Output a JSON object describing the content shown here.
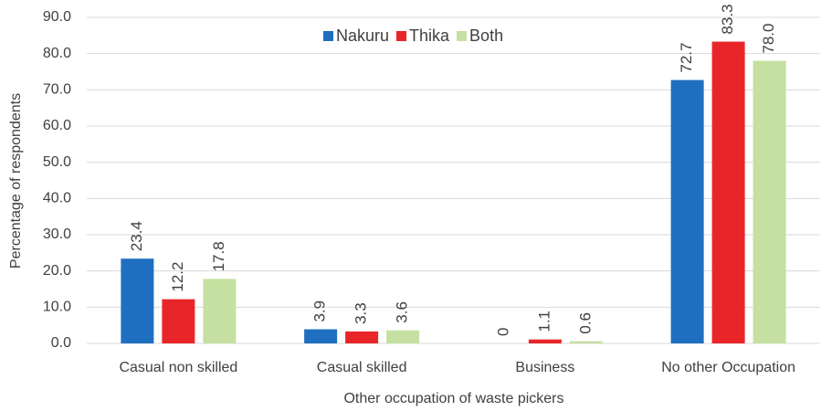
{
  "chart_data": {
    "type": "bar",
    "x_label": "Other occupation of waste pickers",
    "y_label": "Percentage of respondents",
    "categories": [
      "Casual non skilled",
      "Casual skilled",
      "Business",
      "No other Occupation"
    ],
    "series": [
      {
        "name": "Nakuru",
        "color": "#1f6fc0",
        "values": [
          23.4,
          3.9,
          0,
          72.7
        ]
      },
      {
        "name": "Thika",
        "color": "#e8262a",
        "values": [
          12.2,
          3.3,
          1.1,
          83.3
        ]
      },
      {
        "name": "Both",
        "color": "#c5e0a0",
        "values": [
          17.8,
          3.6,
          0.6,
          78.0
        ],
        "value_labels": [
          "17.8",
          "3.6",
          "0.6",
          "78.0"
        ]
      }
    ],
    "ylim": [
      0,
      90
    ],
    "yticks": [
      {
        "value": 0,
        "label": "0.0"
      },
      {
        "value": 10,
        "label": "10.0"
      },
      {
        "value": 20,
        "label": "20.0"
      },
      {
        "value": 30,
        "label": "30.0"
      },
      {
        "value": 40,
        "label": "40.0"
      },
      {
        "value": 50,
        "label": "50.0"
      },
      {
        "value": 60,
        "label": "60.0"
      },
      {
        "value": 70,
        "label": "70.0"
      },
      {
        "value": 80,
        "label": "80.0"
      },
      {
        "value": 90,
        "label": "90.0"
      }
    ],
    "grid": true,
    "legend": "top"
  }
}
